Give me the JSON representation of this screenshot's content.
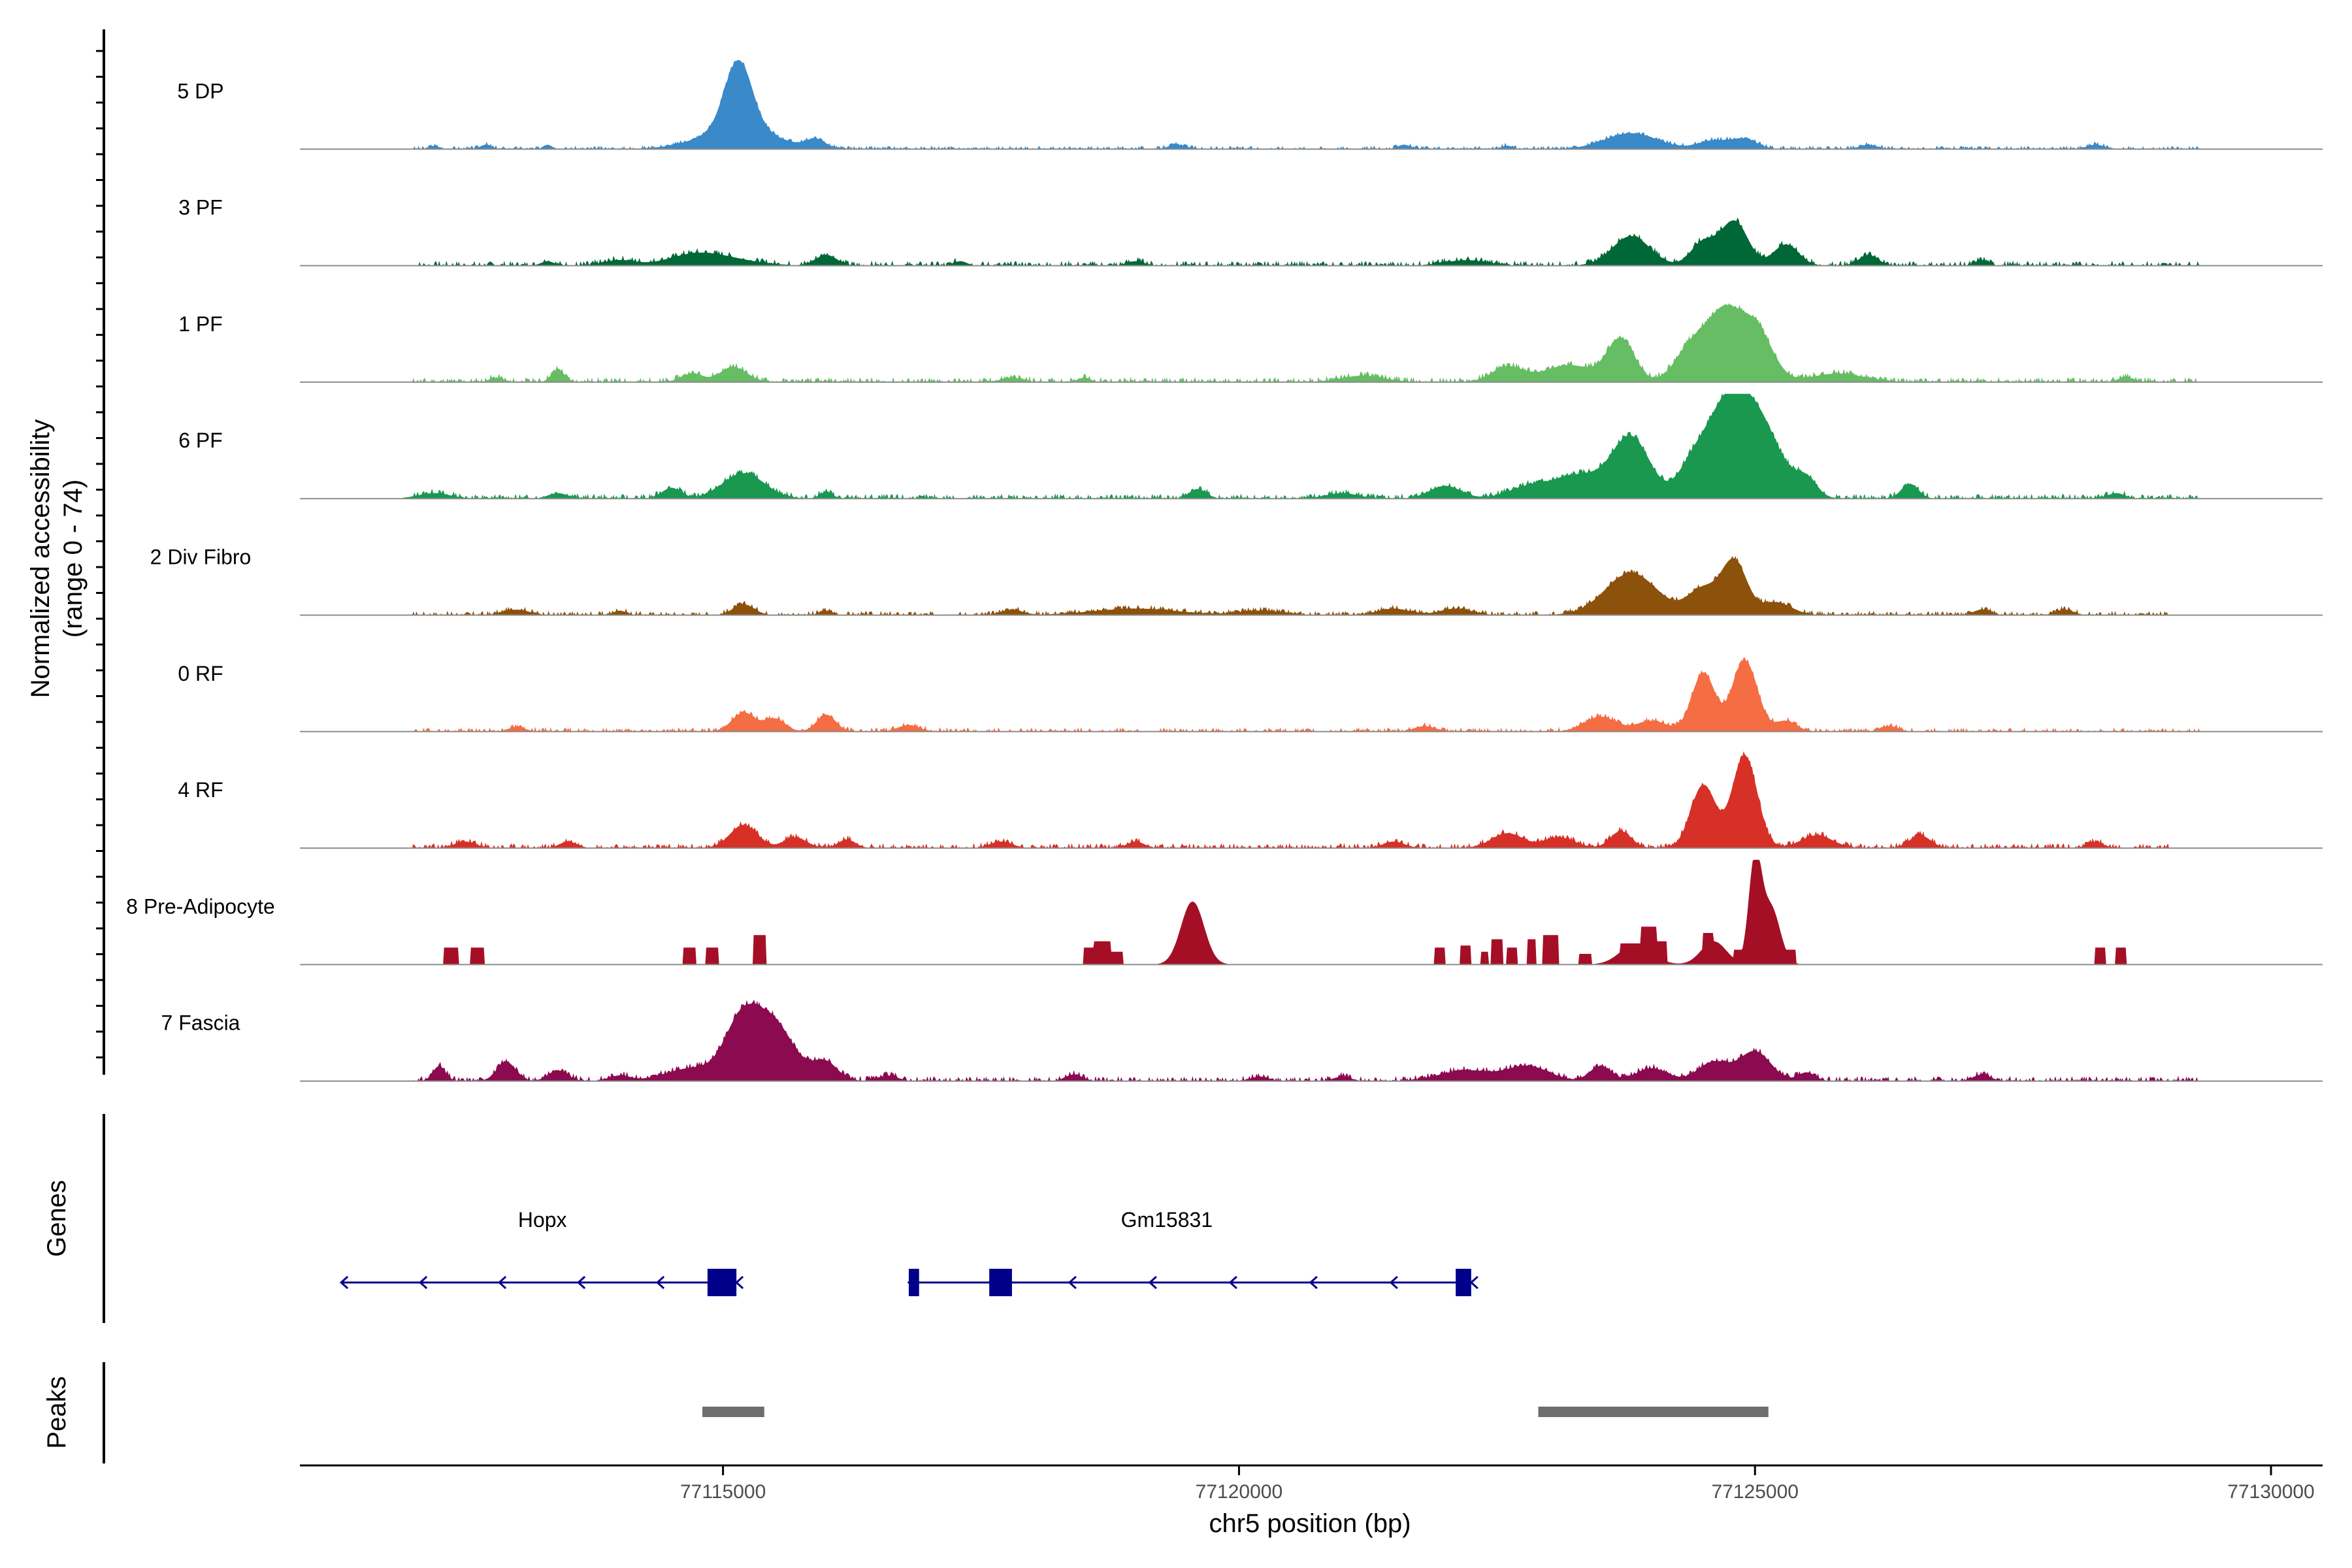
{
  "chart_data": {
    "type": "area",
    "ylabel": "Normalized accessibility",
    "ylabel_range": "(range 0 - 74)",
    "ylim": [
      0,
      74
    ],
    "xlabel": "chr5 position (bp)",
    "xlim": [
      77110900,
      77130500
    ],
    "xticks": [
      {
        "value": 77115000,
        "label": "77115000"
      },
      {
        "value": 77120000,
        "label": "77120000"
      },
      {
        "value": 77125000,
        "label": "77125000"
      },
      {
        "value": 77130000,
        "label": "77130000"
      }
    ],
    "series": [
      {
        "name": "5 DP",
        "color": "#3A89C9",
        "peaks": [
          [
            77112200,
            3,
            40
          ],
          [
            77112700,
            4,
            50
          ],
          [
            77113300,
            4,
            40
          ],
          [
            77115150,
            65,
            130
          ],
          [
            77115150,
            20,
            350
          ],
          [
            77115900,
            8,
            90
          ],
          [
            77119400,
            4,
            80
          ],
          [
            77121600,
            4,
            60
          ],
          [
            77122600,
            3,
            50
          ],
          [
            77123800,
            15,
            250
          ],
          [
            77124600,
            8,
            150
          ],
          [
            77124900,
            9,
            120
          ],
          [
            77126100,
            4,
            80
          ],
          [
            77128300,
            4,
            80
          ]
        ],
        "noise": 2,
        "noise_range": [
          77112000,
          77129300
        ],
        "seed": 3
      },
      {
        "name": "3 PF",
        "color": "#006837",
        "peaks": [
          [
            77113300,
            4,
            60
          ],
          [
            77114000,
            5,
            150
          ],
          [
            77114700,
            8,
            250
          ],
          [
            77115000,
            6,
            300
          ],
          [
            77116000,
            10,
            100
          ],
          [
            77117300,
            4,
            60
          ],
          [
            77119000,
            4,
            80
          ],
          [
            77122200,
            5,
            200
          ],
          [
            77123800,
            28,
            180
          ],
          [
            77124500,
            22,
            120
          ],
          [
            77124800,
            42,
            130
          ],
          [
            77125300,
            20,
            120
          ],
          [
            77126100,
            10,
            90
          ],
          [
            77127200,
            5,
            60
          ]
        ],
        "noise": 3,
        "noise_range": [
          77112000,
          77129300
        ],
        "seed": 7
      },
      {
        "name": "1 PF",
        "color": "#66BD63",
        "peaks": [
          [
            77112800,
            4,
            60
          ],
          [
            77113400,
            12,
            60
          ],
          [
            77114700,
            8,
            100
          ],
          [
            77115100,
            14,
            130
          ],
          [
            77117800,
            4,
            100
          ],
          [
            77118500,
            4,
            60
          ],
          [
            77121200,
            6,
            200
          ],
          [
            77122600,
            14,
            150
          ],
          [
            77123200,
            16,
            250
          ],
          [
            77123700,
            40,
            130
          ],
          [
            77124400,
            36,
            160
          ],
          [
            77124700,
            58,
            150
          ],
          [
            77125000,
            52,
            160
          ],
          [
            77125800,
            8,
            250
          ],
          [
            77128600,
            4,
            80
          ]
        ],
        "noise": 3,
        "noise_range": [
          77112000,
          77129300
        ],
        "seed": 11
      },
      {
        "name": "6 PF",
        "color": "#1A9850",
        "peaks": [
          [
            77112200,
            5,
            150
          ],
          [
            77113400,
            5,
            90
          ],
          [
            77114500,
            10,
            90
          ],
          [
            77115200,
            24,
            200
          ],
          [
            77116000,
            6,
            60
          ],
          [
            77119600,
            9,
            80
          ],
          [
            77121000,
            5,
            150
          ],
          [
            77122000,
            12,
            150
          ],
          [
            77122800,
            10,
            200
          ],
          [
            77123300,
            22,
            250
          ],
          [
            77123800,
            57,
            180
          ],
          [
            77124400,
            30,
            150
          ],
          [
            77124700,
            62,
            180
          ],
          [
            77125000,
            78,
            230
          ],
          [
            77125500,
            16,
            100
          ],
          [
            77126500,
            14,
            80
          ],
          [
            77128500,
            5,
            80
          ]
        ],
        "noise": 3,
        "noise_range": [
          77112000,
          77129300
        ],
        "seed": 13
      },
      {
        "name": "2 Div Fibro",
        "color": "#8C510A",
        "peaks": [
          [
            77113000,
            5,
            120
          ],
          [
            77114000,
            4,
            60
          ],
          [
            77115200,
            10,
            100
          ],
          [
            77116000,
            4,
            60
          ],
          [
            77117800,
            5,
            100
          ],
          [
            77119000,
            6,
            400
          ],
          [
            77120200,
            4,
            200
          ],
          [
            77121500,
            6,
            150
          ],
          [
            77122100,
            6,
            150
          ],
          [
            77123800,
            40,
            250
          ],
          [
            77124500,
            25,
            150
          ],
          [
            77124800,
            50,
            120
          ],
          [
            77125200,
            12,
            150
          ],
          [
            77127200,
            5,
            80
          ],
          [
            77128000,
            5,
            80
          ]
        ],
        "noise": 2.5,
        "noise_range": [
          77112000,
          77129000
        ],
        "seed": 17
      },
      {
        "name": "0 RF",
        "color": "#F46D43",
        "peaks": [
          [
            77113000,
            4,
            80
          ],
          [
            77115200,
            18,
            110
          ],
          [
            77115500,
            12,
            100
          ],
          [
            77116000,
            16,
            90
          ],
          [
            77116800,
            6,
            100
          ],
          [
            77121800,
            5,
            100
          ],
          [
            77123500,
            14,
            150
          ],
          [
            77124000,
            10,
            150
          ],
          [
            77124500,
            56,
            110
          ],
          [
            77124900,
            68,
            120
          ],
          [
            77125300,
            10,
            100
          ],
          [
            77126300,
            5,
            80
          ]
        ],
        "noise": 2.5,
        "noise_range": [
          77112000,
          77129300
        ],
        "seed": 19
      },
      {
        "name": "4 RF",
        "color": "#D73027",
        "peaks": [
          [
            77112500,
            6,
            100
          ],
          [
            77113500,
            6,
            80
          ],
          [
            77115200,
            22,
            130
          ],
          [
            77115700,
            10,
            110
          ],
          [
            77116200,
            8,
            80
          ],
          [
            77117700,
            6,
            100
          ],
          [
            77119000,
            6,
            80
          ],
          [
            77121500,
            6,
            100
          ],
          [
            77122600,
            14,
            150
          ],
          [
            77123100,
            10,
            150
          ],
          [
            77123700,
            16,
            100
          ],
          [
            77124500,
            60,
            120
          ],
          [
            77124900,
            88,
            120
          ],
          [
            77125600,
            12,
            150
          ],
          [
            77126600,
            12,
            100
          ],
          [
            77128300,
            5,
            80
          ]
        ],
        "noise": 3,
        "noise_range": [
          77112000,
          77129000
        ],
        "seed": 23
      },
      {
        "name": "8 Pre-Adipocyte",
        "color": "#A50F26",
        "blocks": [
          [
            77112300,
            77112440,
            16
          ],
          [
            77112560,
            77112690,
            16
          ],
          [
            77114620,
            77114740,
            16
          ],
          [
            77114840,
            77114960,
            16
          ],
          [
            77115300,
            77115420,
            28
          ],
          [
            77118500,
            77118600,
            16
          ],
          [
            77118600,
            77118760,
            22
          ],
          [
            77118760,
            77118880,
            12
          ],
          [
            77121900,
            77122000,
            16
          ],
          [
            77122150,
            77122250,
            18
          ],
          [
            77122350,
            77122420,
            12
          ],
          [
            77122450,
            77122560,
            24
          ],
          [
            77122600,
            77122700,
            16
          ],
          [
            77122800,
            77122880,
            24
          ],
          [
            77122950,
            77123100,
            28
          ],
          [
            77123300,
            77123420,
            10
          ],
          [
            77123700,
            77123900,
            20
          ],
          [
            77123900,
            77124050,
            36
          ],
          [
            77124050,
            77124150,
            22
          ],
          [
            77124500,
            77124600,
            30
          ],
          [
            77124800,
            77124880,
            14
          ],
          [
            77124950,
            77125050,
            20
          ],
          [
            77125050,
            77125200,
            14
          ],
          [
            77125200,
            77125400,
            14
          ],
          [
            77128300,
            77128400,
            16
          ],
          [
            77128500,
            77128600,
            16
          ]
        ],
        "peaks": [
          [
            77119550,
            60,
            110
          ],
          [
            77125000,
            95,
            60
          ],
          [
            77125150,
            55,
            90
          ],
          [
            77124600,
            22,
            120
          ],
          [
            77123850,
            20,
            150
          ]
        ],
        "noise": 0,
        "noise_range": [
          77112000,
          77129000
        ],
        "seed": 29
      },
      {
        "name": "7 Fascia",
        "color": "#8B0A50",
        "peaks": [
          [
            77112250,
            14,
            60
          ],
          [
            77112900,
            18,
            90
          ],
          [
            77113400,
            10,
            90
          ],
          [
            77114000,
            5,
            100
          ],
          [
            77114700,
            12,
            250
          ],
          [
            77115200,
            60,
            170
          ],
          [
            77115500,
            30,
            150
          ],
          [
            77115600,
            20,
            250
          ],
          [
            77116000,
            14,
            110
          ],
          [
            77116600,
            5,
            90
          ],
          [
            77118400,
            6,
            80
          ],
          [
            77120200,
            4,
            80
          ],
          [
            77121000,
            4,
            80
          ],
          [
            77122200,
            10,
            250
          ],
          [
            77122800,
            14,
            200
          ],
          [
            77123500,
            14,
            100
          ],
          [
            77124000,
            12,
            150
          ],
          [
            77124600,
            18,
            150
          ],
          [
            77125000,
            28,
            150
          ],
          [
            77125500,
            8,
            80
          ],
          [
            77127200,
            6,
            80
          ]
        ],
        "noise": 3,
        "noise_range": [
          77112000,
          77129300
        ],
        "seed": 31
      }
    ],
    "genes_label": "Genes",
    "genes": [
      {
        "name": "Hopx",
        "strand": "-",
        "start": 77111300,
        "end": 77115130,
        "exons": [
          [
            77114850,
            77115130
          ]
        ],
        "label_at": 77113250
      },
      {
        "name": "Gm15831",
        "strand": "-",
        "start": 77116800,
        "end": 77122250,
        "exons": [
          [
            77116800,
            77116900
          ],
          [
            77117580,
            77117800
          ],
          [
            77122100,
            77122250
          ]
        ],
        "label_at": 77119300
      }
    ],
    "peaks_label": "Peaks",
    "peak_regions": [
      [
        77114800,
        77115400
      ],
      [
        77122900,
        77125130
      ]
    ]
  }
}
